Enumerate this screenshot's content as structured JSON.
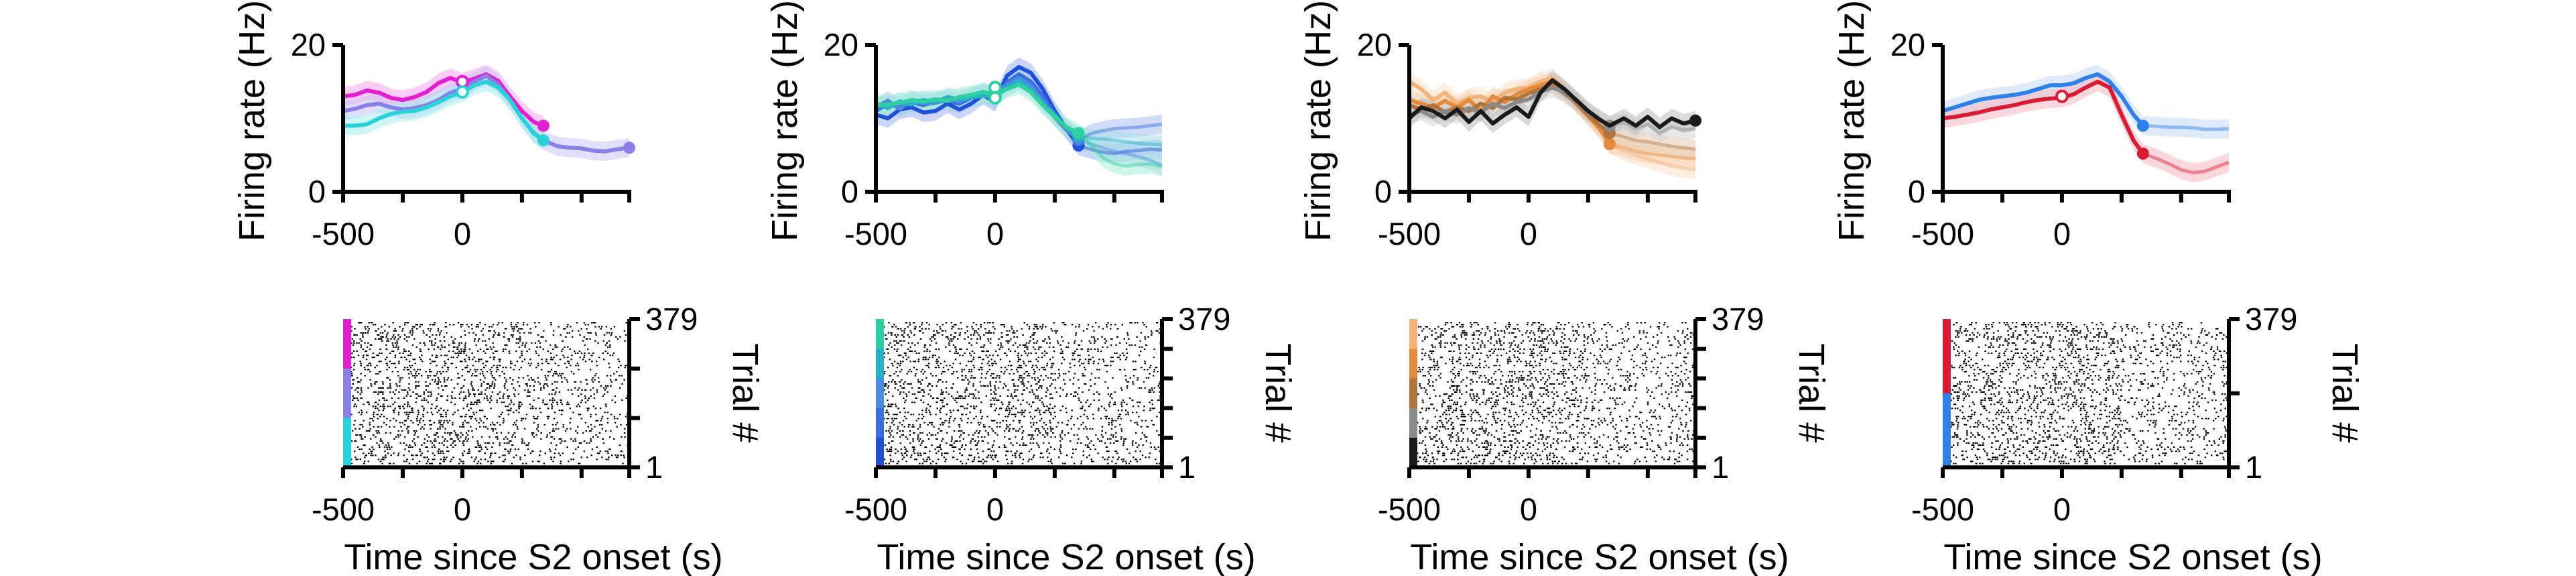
{
  "chart_data": [
    {
      "type": "line",
      "ylabel": "Firing rate (Hz)",
      "xticks": [
        "-500",
        "0"
      ],
      "xlim": [
        -500,
        700
      ],
      "ylim": [
        0,
        20
      ],
      "yticks": [
        "0",
        "20"
      ],
      "series": [
        {
          "color": "#e020d0",
          "band": "#f5a3ee",
          "stop_x": 340,
          "x": [
            -500,
            -450,
            -400,
            -350,
            -300,
            -250,
            -200,
            -150,
            -100,
            -50,
            0,
            50,
            100,
            150,
            200,
            250,
            300,
            340
          ],
          "y": [
            13,
            13.2,
            13.8,
            13.5,
            12.8,
            12.5,
            12.9,
            13.6,
            14.8,
            15.5,
            14.9,
            15.4,
            16,
            15.1,
            13,
            11,
            9.5,
            9
          ]
        },
        {
          "color": "#8a80e8",
          "band": "#c9c4f5",
          "stop_x": 700,
          "x": [
            -500,
            -450,
            -400,
            -350,
            -300,
            -250,
            -200,
            -150,
            -100,
            -50,
            0,
            50,
            100,
            150,
            200,
            250,
            300,
            340,
            400,
            450,
            500,
            550,
            600,
            650,
            700
          ],
          "y": [
            11,
            11.3,
            11.8,
            12,
            11.5,
            11.2,
            11.4,
            11.8,
            12.5,
            13.5,
            14,
            15,
            15.8,
            14.6,
            12.5,
            10,
            8,
            7,
            6.2,
            6,
            5.9,
            5.6,
            5.5,
            5.8,
            6
          ]
        },
        {
          "color": "#28d2d8",
          "band": "#a8eef0",
          "stop_x": 340,
          "x": [
            -500,
            -450,
            -400,
            -350,
            -300,
            -250,
            -200,
            -150,
            -100,
            -50,
            0,
            50,
            100,
            150,
            200,
            250,
            300,
            340
          ],
          "y": [
            9,
            9,
            9.2,
            10,
            10.6,
            10.9,
            11,
            11.5,
            12.2,
            13,
            13.5,
            14.5,
            15,
            14.2,
            12.5,
            10,
            7.9,
            7
          ]
        }
      ],
      "rings": [
        {
          "x": 0,
          "y": 15,
          "color": "#e020d0"
        },
        {
          "x": 0,
          "y": 13.6,
          "color": "#28d2d8"
        }
      ]
    },
    {
      "type": "line",
      "ylabel": "Firing rate (Hz)",
      "xticks": [
        "-500",
        "0"
      ],
      "xlim": [
        -500,
        700
      ],
      "ylim": [
        0,
        20
      ],
      "yticks": [
        "0",
        "20"
      ],
      "series": [
        {
          "color": "#2050d8",
          "band": "#9fb3f0",
          "stop_x": 350,
          "x": [
            -500,
            -450,
            -400,
            -350,
            -300,
            -250,
            -200,
            -150,
            -100,
            -50,
            0,
            50,
            100,
            150,
            200,
            250,
            300,
            350,
            400,
            450,
            500,
            550,
            600,
            650,
            700
          ],
          "y": [
            10.5,
            10,
            11.2,
            11.5,
            10.8,
            11,
            12,
            11.2,
            12,
            13.2,
            12.2,
            15.8,
            17,
            16.2,
            14,
            11,
            8.5,
            6.3,
            5.8,
            5.4,
            5.2,
            5.5,
            5.6,
            5.8,
            5.7
          ]
        },
        {
          "color": "#3a6ee0",
          "band": "#aac0f2",
          "stop_x": 350,
          "x": [
            -500,
            -450,
            -400,
            -350,
            -300,
            -250,
            -200,
            -150,
            -100,
            -50,
            0,
            50,
            100,
            150,
            200,
            250,
            300,
            350,
            400,
            450,
            500,
            550,
            600,
            650,
            700
          ],
          "y": [
            11,
            12,
            11.5,
            12.2,
            11.8,
            12.3,
            12.4,
            12,
            12.8,
            13.5,
            12.6,
            14.9,
            16,
            15,
            13,
            10.5,
            8.5,
            7,
            7.9,
            8.3,
            8.6,
            8.7,
            8.8,
            9,
            9.2
          ]
        },
        {
          "color": "#4a8ae0",
          "band": "#b3cdf2",
          "stop_x": 350,
          "x": [
            -500,
            -450,
            -400,
            -350,
            -300,
            -250,
            -200,
            -150,
            -100,
            -50,
            0,
            50,
            100,
            150,
            200,
            250,
            300,
            350,
            400,
            450,
            500,
            550,
            600,
            650,
            700
          ],
          "y": [
            11.5,
            12.4,
            11.3,
            12.5,
            12,
            12.1,
            12.6,
            12.3,
            13,
            13.3,
            13.4,
            14.6,
            15.5,
            14.4,
            12.4,
            10.2,
            8.4,
            7.2,
            6.5,
            6,
            5.5,
            5.2,
            4.8,
            4.3,
            3.6
          ]
        },
        {
          "color": "#27b0c8",
          "band": "#a6e0ea",
          "stop_x": 350,
          "x": [
            -500,
            -450,
            -400,
            -350,
            -300,
            -250,
            -200,
            -150,
            -100,
            -50,
            0,
            50,
            100,
            150,
            200,
            250,
            300,
            350,
            400,
            450,
            500,
            550,
            600,
            650,
            700
          ],
          "y": [
            12,
            11.4,
            12.3,
            11.9,
            12.5,
            12.2,
            12.9,
            12.6,
            12.8,
            13.1,
            12.9,
            14.2,
            15.1,
            13.9,
            12,
            10.5,
            8.7,
            7.6,
            7.3,
            7.2,
            7,
            6.8,
            6.6,
            6.5,
            6.4
          ]
        },
        {
          "color": "#2ecfa0",
          "band": "#a8eed8",
          "stop_x": 350,
          "x": [
            -500,
            -450,
            -400,
            -350,
            -300,
            -250,
            -200,
            -150,
            -100,
            -50,
            0,
            50,
            100,
            150,
            200,
            250,
            300,
            350,
            400,
            450,
            500,
            550,
            600,
            650,
            700
          ],
          "y": [
            11.8,
            11.9,
            12.1,
            12.5,
            12.3,
            12.6,
            12.4,
            12.9,
            13.2,
            13.6,
            13.2,
            14,
            14.6,
            13.6,
            11.8,
            10.2,
            8.8,
            8,
            6.5,
            4.7,
            3.8,
            3.5,
            3.7,
            3.8,
            3.4
          ]
        }
      ],
      "rings": [
        {
          "x": 0,
          "y": 14.2,
          "color": "#2ecfa0"
        },
        {
          "x": 0,
          "y": 12.8,
          "color": "#2ecfa0"
        }
      ]
    },
    {
      "type": "line",
      "ylabel": "Firing rate (Hz)",
      "xticks": [
        "-500",
        "0"
      ],
      "xlim": [
        -500,
        700
      ],
      "ylim": [
        0,
        20
      ],
      "yticks": [
        "0",
        "20"
      ],
      "series": [
        {
          "color": "#f2b47a",
          "band": "#fbe0c8",
          "stop_x": 340,
          "x": [
            -500,
            -450,
            -400,
            -350,
            -300,
            -250,
            -200,
            -150,
            -100,
            -50,
            0,
            50,
            100,
            150,
            200,
            250,
            300,
            340,
            400,
            450,
            500,
            550,
            600,
            650,
            700
          ],
          "y": [
            15,
            14,
            12.5,
            13.5,
            12,
            12.8,
            13,
            12.2,
            13.5,
            14,
            14.2,
            15,
            15.5,
            14,
            12.5,
            10.5,
            8.5,
            6.5,
            5.5,
            5,
            4.5,
            4,
            3.5,
            3.2,
            3
          ]
        },
        {
          "color": "#e48a3c",
          "band": "#f6d0ae",
          "stop_x": 340,
          "x": [
            -500,
            -450,
            -400,
            -350,
            -300,
            -250,
            -200,
            -150,
            -100,
            -50,
            0,
            50,
            100,
            150,
            200,
            250,
            300,
            340,
            400,
            450,
            500,
            550,
            600,
            650,
            700
          ],
          "y": [
            12.5,
            12,
            11.5,
            12.4,
            11.5,
            12.5,
            11,
            13,
            12.2,
            13.3,
            14,
            14.5,
            15,
            13.8,
            12,
            10.3,
            8.5,
            6.5,
            6,
            5.5,
            5.2,
            5,
            4.8,
            4.6,
            4.5
          ]
        },
        {
          "color": "#b0743e",
          "band": "#e6cbb0",
          "stop_x": 340,
          "x": [
            -500,
            -450,
            -400,
            -350,
            -300,
            -250,
            -200,
            -150,
            -100,
            -50,
            0,
            50,
            100,
            150,
            200,
            250,
            300,
            340,
            400,
            450,
            500,
            550,
            600,
            650,
            700
          ],
          "y": [
            11.8,
            11.2,
            11.8,
            10.8,
            11.5,
            11,
            12,
            11.4,
            12.8,
            12.6,
            13.4,
            14,
            14.6,
            13.4,
            12.2,
            10.5,
            9,
            8,
            7.5,
            7,
            6.8,
            6.5,
            6.2,
            6,
            5.8
          ]
        },
        {
          "color": "#8a8a8a",
          "band": "#d6d6d6",
          "stop_x": 340,
          "x": [
            -500,
            -450,
            -400,
            -350,
            -300,
            -250,
            -200,
            -150,
            -100,
            -50,
            0,
            50,
            100,
            150,
            200,
            250,
            300,
            340,
            400,
            450,
            500,
            550,
            600,
            650,
            700
          ],
          "y": [
            10.5,
            11,
            10.2,
            11,
            10.5,
            11.4,
            10.8,
            12,
            11.4,
            12.2,
            12.6,
            13.6,
            14.2,
            13.6,
            12.4,
            10.8,
            9.8,
            9,
            9.4,
            8.6,
            9.2,
            8,
            8.8,
            8.4,
            8.6
          ]
        },
        {
          "color": "#1a1a1a",
          "band": "#bdbdbd",
          "stop_x": 700,
          "x": [
            -500,
            -450,
            -400,
            -350,
            -300,
            -250,
            -200,
            -150,
            -100,
            -50,
            0,
            50,
            100,
            150,
            200,
            250,
            300,
            340,
            400,
            450,
            500,
            550,
            600,
            650,
            700
          ],
          "y": [
            10,
            11.5,
            11,
            10,
            11.2,
            9.5,
            11,
            9.3,
            10.5,
            11.5,
            10.2,
            13.5,
            15.2,
            14,
            12.5,
            11,
            9.8,
            9,
            10,
            9,
            10.2,
            8.8,
            10,
            9.3,
            9.7
          ]
        }
      ],
      "rings": []
    },
    {
      "type": "line",
      "ylabel": "Firing rate (Hz)",
      "xticks": [
        "-500",
        "0"
      ],
      "xlim": [
        -500,
        700
      ],
      "ylim": [
        0,
        20
      ],
      "yticks": [
        "0",
        "20"
      ],
      "series": [
        {
          "color": "#2f80e8",
          "band": "#c4daf6",
          "stop_x": 340,
          "x": [
            -500,
            -450,
            -400,
            -350,
            -300,
            -250,
            -200,
            -150,
            -100,
            -50,
            0,
            50,
            100,
            150,
            200,
            250,
            300,
            340,
            400,
            450,
            500,
            550,
            600,
            650,
            700
          ],
          "y": [
            11,
            11.5,
            12,
            12.5,
            12.8,
            13,
            13.2,
            13.5,
            14,
            14.5,
            14.5,
            14.8,
            15.5,
            16,
            15,
            13,
            10.5,
            9,
            8.9,
            8.8,
            8.8,
            8.7,
            8.5,
            8.5,
            8.6
          ]
        },
        {
          "color": "#d81c34",
          "band": "#f5b6c0",
          "stop_x": 340,
          "x": [
            -500,
            -450,
            -400,
            -350,
            -300,
            -250,
            -200,
            -150,
            -100,
            -50,
            0,
            50,
            100,
            150,
            200,
            250,
            300,
            340,
            400,
            450,
            500,
            550,
            600,
            650,
            700
          ],
          "y": [
            10,
            10.2,
            10.5,
            10.8,
            11.2,
            11.5,
            11.8,
            12.2,
            12.5,
            12.7,
            12.8,
            13.3,
            14.2,
            15,
            14.2,
            10.5,
            7,
            5.2,
            4.5,
            3.8,
            3,
            2.6,
            2.8,
            3.4,
            4
          ]
        }
      ],
      "rings": [
        {
          "x": 0,
          "y": 13,
          "color": "#d81c34"
        }
      ]
    }
  ],
  "rasters": [
    {
      "xticks": [
        "-500",
        "0"
      ],
      "ytop": "379",
      "ybottom": "1",
      "ylabel": "Trial #",
      "xlabel": "Time since S2 onset (s)",
      "condition_colors": [
        "#e020d0",
        "#8a80e8",
        "#28d2d8"
      ]
    },
    {
      "xticks": [
        "-500",
        "0"
      ],
      "ytop": "379",
      "ybottom": "1",
      "ylabel": "Trial #",
      "xlabel": "Time since S2 onset (s)",
      "condition_colors": [
        "#2ecfa0",
        "#27b0c8",
        "#4a8ae0",
        "#3a6ee0",
        "#2050d8"
      ]
    },
    {
      "xticks": [
        "-500",
        "0"
      ],
      "ytop": "379",
      "ybottom": "1",
      "ylabel": "Trial #",
      "xlabel": "Time since S2 onset (s)",
      "condition_colors": [
        "#f2b47a",
        "#e48a3c",
        "#b0743e",
        "#8a8a8a",
        "#1a1a1a"
      ]
    },
    {
      "xticks": [
        "-500",
        "0"
      ],
      "ytop": "379",
      "ybottom": "1",
      "ylabel": "Trial #",
      "xlabel": "Time since S2 onset (s)",
      "condition_colors": [
        "#d81c34",
        "#2f80e8"
      ]
    }
  ]
}
